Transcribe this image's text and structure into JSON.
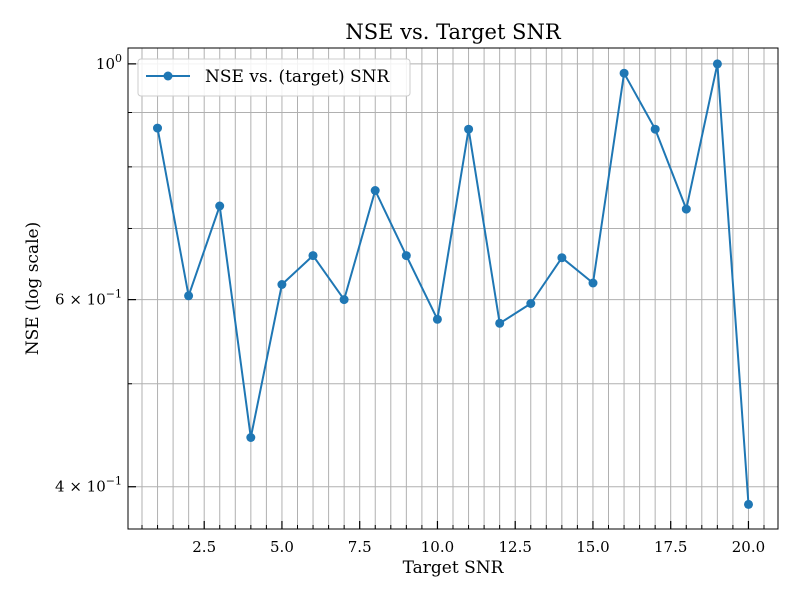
{
  "chart_data": {
    "type": "line",
    "title": "NSE vs. Target SNR",
    "xlabel": "Target SNR",
    "ylabel": "NSE (log scale)",
    "yscale": "log",
    "xlim": [
      0.05,
      20.95
    ],
    "ylim": [
      0.365,
      1.035
    ],
    "x_ticks": [
      2.5,
      5.0,
      7.5,
      10.0,
      12.5,
      15.0,
      17.5,
      20.0
    ],
    "x_tick_labels": [
      "2.5",
      "5.0",
      "7.5",
      "10.0",
      "12.5",
      "15.0",
      "17.5",
      "20.0"
    ],
    "y_ticks": [
      0.4,
      0.6,
      1.0
    ],
    "y_tick_labels": [
      {
        "base": "4 × 10",
        "exp": "−1"
      },
      {
        "base": "6 × 10",
        "exp": "−1"
      },
      {
        "base": "10",
        "exp": "0"
      }
    ],
    "y_minor_ticks": [
      0.5,
      0.7,
      0.8,
      0.9
    ],
    "grid": true,
    "legend_position": "top-left",
    "series": [
      {
        "name": "NSE vs. (target) SNR",
        "color": "#1f77b4",
        "marker": "circle",
        "x": [
          1,
          2,
          3,
          4,
          5,
          6,
          7,
          8,
          9,
          10,
          11,
          12,
          13,
          14,
          15,
          16,
          17,
          18,
          19,
          20
        ],
        "y": [
          0.87,
          0.605,
          0.735,
          0.445,
          0.62,
          0.66,
          0.6,
          0.76,
          0.66,
          0.575,
          0.868,
          0.57,
          0.595,
          0.657,
          0.622,
          0.98,
          0.868,
          0.73,
          1.0,
          0.385
        ]
      }
    ]
  }
}
